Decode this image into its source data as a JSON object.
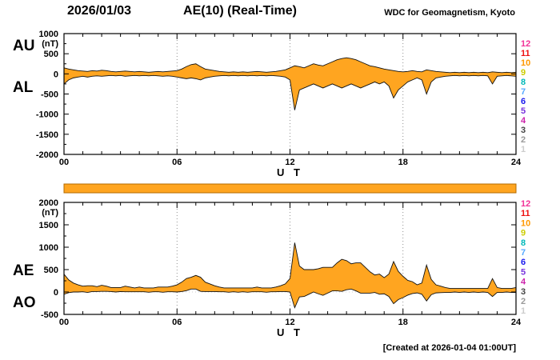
{
  "header": {
    "date": "2026/01/03",
    "title": "AE(10) (Real-Time)",
    "source": "WDC for Geomagnetism, Kyoto"
  },
  "footer": {
    "created": "[Created at 2026-01-04 01:00UT]"
  },
  "legend": {
    "stations": [
      {
        "label": "12",
        "color": "#f23399"
      },
      {
        "label": "11",
        "color": "#ee1111"
      },
      {
        "label": "10",
        "color": "#ff9900"
      },
      {
        "label": "9",
        "color": "#cccc00"
      },
      {
        "label": "8",
        "color": "#00b8b8"
      },
      {
        "label": "7",
        "color": "#55aaff"
      },
      {
        "label": "6",
        "color": "#1818ee"
      },
      {
        "label": "5",
        "color": "#7733dd"
      },
      {
        "label": "4",
        "color": "#cc22aa"
      },
      {
        "label": "3",
        "color": "#444444"
      },
      {
        "label": "2",
        "color": "#999999"
      },
      {
        "label": "1",
        "color": "#cccccc"
      }
    ]
  },
  "colors": {
    "fill": "#ffa520",
    "stroke": "#111111",
    "coverage_bar": "#ffa520"
  },
  "chart_data": [
    {
      "type": "area",
      "title": "AU and AL indices",
      "ylabel": "(nT)",
      "xlabel": "U T",
      "ylim": [
        -2000,
        1000
      ],
      "yticks": [
        1000,
        500,
        0,
        -500,
        -1000,
        -1500,
        -2000
      ],
      "xticks": {
        "values": [
          0,
          6,
          12,
          18,
          24
        ],
        "labels": [
          "00",
          "06",
          "12",
          "18",
          "24"
        ]
      },
      "x_start": 0,
      "x_step": 0.25,
      "x_end": 24,
      "grid_hours": [
        6,
        12,
        18
      ],
      "grid_y": [
        0
      ],
      "series": [
        {
          "name": "AU",
          "values": [
            150,
            120,
            100,
            80,
            70,
            60,
            80,
            70,
            90,
            80,
            60,
            50,
            60,
            70,
            60,
            50,
            60,
            50,
            40,
            50,
            60,
            50,
            60,
            70,
            80,
            120,
            180,
            230,
            250,
            180,
            120,
            100,
            80,
            60,
            50,
            40,
            50,
            40,
            50,
            40,
            50,
            60,
            50,
            40,
            50,
            60,
            80,
            100,
            150,
            200,
            180,
            150,
            200,
            250,
            220,
            200,
            250,
            300,
            350,
            380,
            400,
            380,
            350,
            300,
            250,
            200,
            180,
            150,
            120,
            100,
            80,
            60,
            50,
            60,
            80,
            60,
            50,
            100,
            80,
            60,
            50,
            40,
            30,
            40,
            30,
            40,
            30,
            40,
            30,
            40,
            30,
            50,
            40,
            30,
            40,
            30,
            40
          ]
        },
        {
          "name": "AL",
          "values": [
            -250,
            -150,
            -100,
            -80,
            -60,
            -80,
            -60,
            -50,
            -60,
            -50,
            -40,
            -50,
            -40,
            -60,
            -50,
            -40,
            -50,
            -40,
            -50,
            -40,
            -50,
            -60,
            -50,
            -60,
            -80,
            -100,
            -120,
            -100,
            -120,
            -150,
            -100,
            -80,
            -60,
            -50,
            -40,
            -50,
            -40,
            -50,
            -40,
            -50,
            -40,
            -50,
            -40,
            -50,
            -40,
            -50,
            -60,
            -80,
            -150,
            -900,
            -400,
            -350,
            -300,
            -250,
            -300,
            -350,
            -300,
            -250,
            -300,
            -350,
            -300,
            -250,
            -300,
            -350,
            -300,
            -250,
            -200,
            -250,
            -200,
            -300,
            -600,
            -400,
            -300,
            -200,
            -150,
            -100,
            -150,
            -500,
            -200,
            -100,
            -80,
            -60,
            -50,
            -40,
            -50,
            -40,
            -50,
            -40,
            -50,
            -40,
            -50,
            -250,
            -60,
            -50,
            -40,
            -50,
            -60
          ]
        }
      ]
    },
    {
      "type": "area",
      "title": "AE and AO indices",
      "ylabel": "(nT)",
      "xlabel": "U T",
      "ylim": [
        -500,
        2000
      ],
      "yticks": [
        2000,
        1500,
        1000,
        500,
        0,
        -500
      ],
      "xticks": {
        "values": [
          0,
          6,
          12,
          18,
          24
        ],
        "labels": [
          "00",
          "06",
          "12",
          "18",
          "24"
        ]
      },
      "x_start": 0,
      "x_step": 0.25,
      "x_end": 24,
      "grid_hours": [
        6,
        12,
        18
      ],
      "grid_y": [
        0
      ],
      "series": [
        {
          "name": "AE",
          "values": [
            400,
            270,
            200,
            160,
            130,
            140,
            140,
            120,
            150,
            130,
            100,
            100,
            100,
            130,
            110,
            90,
            110,
            90,
            90,
            90,
            110,
            110,
            110,
            130,
            160,
            220,
            300,
            330,
            370,
            330,
            220,
            180,
            140,
            110,
            90,
            90,
            90,
            90,
            90,
            90,
            90,
            110,
            90,
            90,
            90,
            110,
            140,
            180,
            300,
            1100,
            580,
            500,
            500,
            500,
            520,
            550,
            550,
            550,
            650,
            730,
            700,
            630,
            650,
            650,
            550,
            450,
            380,
            400,
            320,
            400,
            680,
            460,
            350,
            260,
            230,
            160,
            200,
            600,
            280,
            160,
            130,
            100,
            80,
            80,
            80,
            80,
            80,
            80,
            80,
            80,
            80,
            300,
            100,
            80,
            80,
            80,
            100
          ]
        },
        {
          "name": "AO",
          "values": [
            -50,
            -15,
            0,
            0,
            5,
            -10,
            10,
            10,
            15,
            15,
            10,
            0,
            10,
            5,
            5,
            5,
            5,
            5,
            -5,
            5,
            5,
            -5,
            5,
            5,
            0,
            10,
            30,
            65,
            65,
            15,
            10,
            10,
            10,
            5,
            5,
            -5,
            5,
            -5,
            5,
            -5,
            5,
            5,
            5,
            -5,
            5,
            5,
            10,
            10,
            0,
            -350,
            -110,
            -100,
            -50,
            0,
            -40,
            -75,
            -25,
            25,
            25,
            15,
            50,
            65,
            25,
            -25,
            -25,
            -25,
            -10,
            -50,
            -40,
            -100,
            -260,
            -170,
            -125,
            -70,
            -35,
            -20,
            -50,
            -200,
            -60,
            -20,
            -15,
            -10,
            -10,
            0,
            -10,
            0,
            -10,
            0,
            -10,
            0,
            -10,
            -100,
            -10,
            -10,
            0,
            -10,
            -10
          ]
        }
      ]
    }
  ]
}
